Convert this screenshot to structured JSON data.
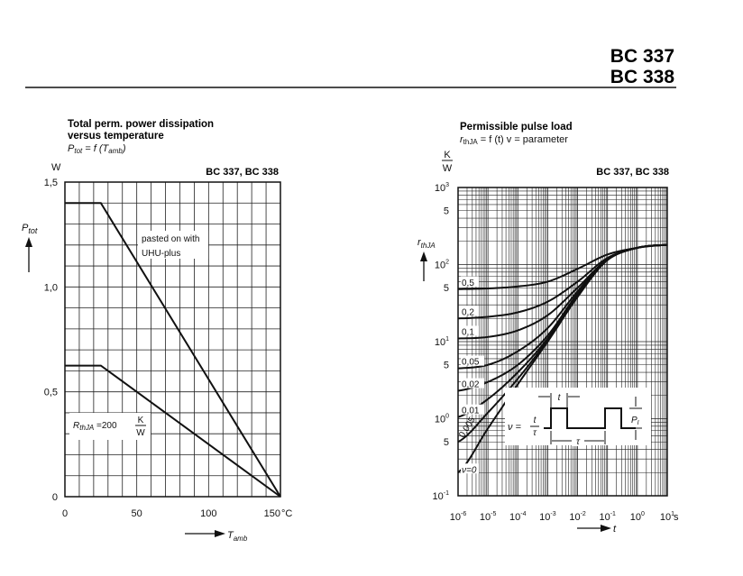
{
  "header": {
    "part1": "BC 337",
    "part2": "BC 338"
  },
  "chart_data": [
    {
      "type": "line",
      "title": "Total perm. power dissipation",
      "subtitle": "versus temperature",
      "formula": {
        "lhs": "P",
        "lhs_sub": "tot",
        "eq": " = f (T",
        "arg_sub": "amb",
        "close": ")"
      },
      "device_label": "BC 337,  BC 338",
      "ylabel": {
        "main": "P",
        "sub": "tot"
      },
      "yunit": "W",
      "xlabel": {
        "main": "T",
        "sub": "amb"
      },
      "xunit": "°C",
      "xlim": [
        0,
        150
      ],
      "ylim": [
        0,
        1.5
      ],
      "grid": true,
      "xticks": [
        {
          "v": 0,
          "label": "0"
        },
        {
          "v": 50,
          "label": "50"
        },
        {
          "v": 100,
          "label": "100"
        },
        {
          "v": 150,
          "label": "150"
        }
      ],
      "yticks": [
        {
          "v": 0,
          "label": "0"
        },
        {
          "v": 0.5,
          "label": "0,5"
        },
        {
          "v": 1.0,
          "label": "1,0"
        },
        {
          "v": 1.5,
          "label": "1,5"
        }
      ],
      "series": [
        {
          "name": "pasted on with UHU-plus",
          "name_lines": [
            "pasted on with",
            "UHU-plus"
          ],
          "x": [
            0,
            25,
            150
          ],
          "y": [
            1.4,
            1.4,
            0
          ]
        },
        {
          "name": "RthJA = 200 K/W",
          "label": {
            "main": "R",
            "sub": "thJA",
            "eq": " =200",
            "num": "K",
            "den": "W"
          },
          "x": [
            0,
            25,
            150
          ],
          "y": [
            0.625,
            0.625,
            0
          ]
        }
      ]
    },
    {
      "type": "line",
      "title": "Permissible pulse load",
      "formula": {
        "lhs": "r",
        "lhs_sub": "thJA",
        "rest": " = f (t)  v = parameter"
      },
      "device_label": "BC 337,  BC 338",
      "ylabel": {
        "main": "r",
        "sub": "thJA"
      },
      "yunit": {
        "num": "K",
        "den": "W"
      },
      "xlabel": "t",
      "xunit": "s",
      "xscale": "log",
      "yscale": "log",
      "xlim": [
        1e-06,
        10
      ],
      "ylim": [
        0.1,
        1000
      ],
      "grid": true,
      "xticks": [
        {
          "v": 1e-06,
          "base": "10",
          "exp": "-6"
        },
        {
          "v": 1e-05,
          "base": "10",
          "exp": "-5"
        },
        {
          "v": 0.0001,
          "base": "10",
          "exp": "-4"
        },
        {
          "v": 0.001,
          "base": "10",
          "exp": "-3"
        },
        {
          "v": 0.01,
          "base": "10",
          "exp": "-2"
        },
        {
          "v": 0.1,
          "base": "10",
          "exp": "-1"
        },
        {
          "v": 1,
          "base": "10",
          "exp": "0"
        },
        {
          "v": 10,
          "base": "10",
          "exp": "1"
        }
      ],
      "yticks": [
        {
          "v": 0.1,
          "base": "10",
          "exp": "-1"
        },
        {
          "v": 0.5,
          "base": "5",
          "exp": ""
        },
        {
          "v": 1,
          "base": "10",
          "exp": "0"
        },
        {
          "v": 5,
          "base": "5",
          "exp": ""
        },
        {
          "v": 10,
          "base": "10",
          "exp": "1"
        },
        {
          "v": 50,
          "base": "5",
          "exp": ""
        },
        {
          "v": 100,
          "base": "10",
          "exp": "2"
        },
        {
          "v": 500,
          "base": "5",
          "exp": ""
        },
        {
          "v": 1000,
          "base": "10",
          "exp": "3"
        }
      ],
      "x": [
        1e-06,
        1e-05,
        0.0001,
        0.001,
        0.01,
        0.1,
        1,
        10
      ],
      "series": [
        {
          "name": "0,5",
          "values": [
            48,
            49,
            52,
            60,
            88,
            135,
            165,
            180
          ]
        },
        {
          "name": "0,2",
          "values": [
            20,
            21,
            24,
            33,
            60,
            122,
            165,
            180
          ]
        },
        {
          "name": "0,1",
          "values": [
            11,
            11.5,
            14,
            22,
            50,
            117,
            165,
            180
          ]
        },
        {
          "name": "0,05",
          "values": [
            4.5,
            5,
            7.5,
            15,
            45,
            115,
            165,
            180
          ]
        },
        {
          "name": "0,02",
          "values": [
            2.3,
            3,
            5,
            12,
            42,
            115,
            165,
            180
          ]
        },
        {
          "name": "0,01",
          "values": [
            1.05,
            1.8,
            4,
            11,
            40,
            115,
            165,
            180
          ]
        },
        {
          "name": "0,005",
          "values": [
            0.5,
            1.2,
            3.3,
            10.5,
            39,
            115,
            165,
            180
          ]
        },
        {
          "name": "ν=0",
          "values": [
            0.2,
            0.75,
            2.8,
            10,
            38,
            115,
            165,
            180
          ]
        }
      ],
      "inset": {
        "nu": "ν =",
        "frac_num": "t",
        "frac_den": "τ",
        "pulse_width": "t",
        "period": "τ",
        "power": "P",
        "power_sub": "I"
      }
    }
  ]
}
